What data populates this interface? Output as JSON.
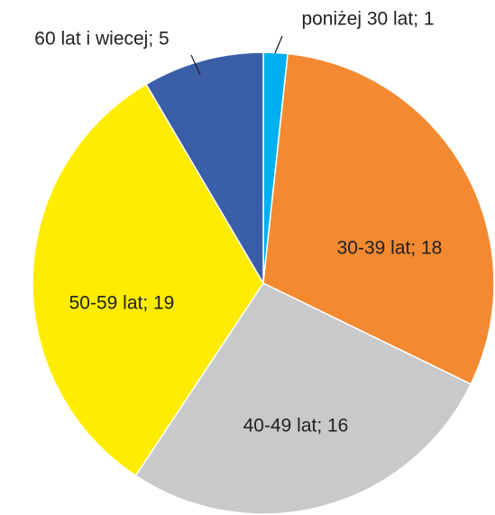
{
  "chart_data": {
    "type": "pie",
    "values": [
      1,
      18,
      16,
      19,
      5
    ],
    "value_labels": [
      "poniżej 30 lat; 1",
      "30-39 lat; 18",
      "40-49 lat; 16",
      "50-59 lat; 19",
      "60 lat i wiecej; 5"
    ],
    "colors": [
      "#00b0f0",
      "#f38a31",
      "#c8c9cb",
      "#ffec00",
      "#3a5ea8"
    ]
  }
}
